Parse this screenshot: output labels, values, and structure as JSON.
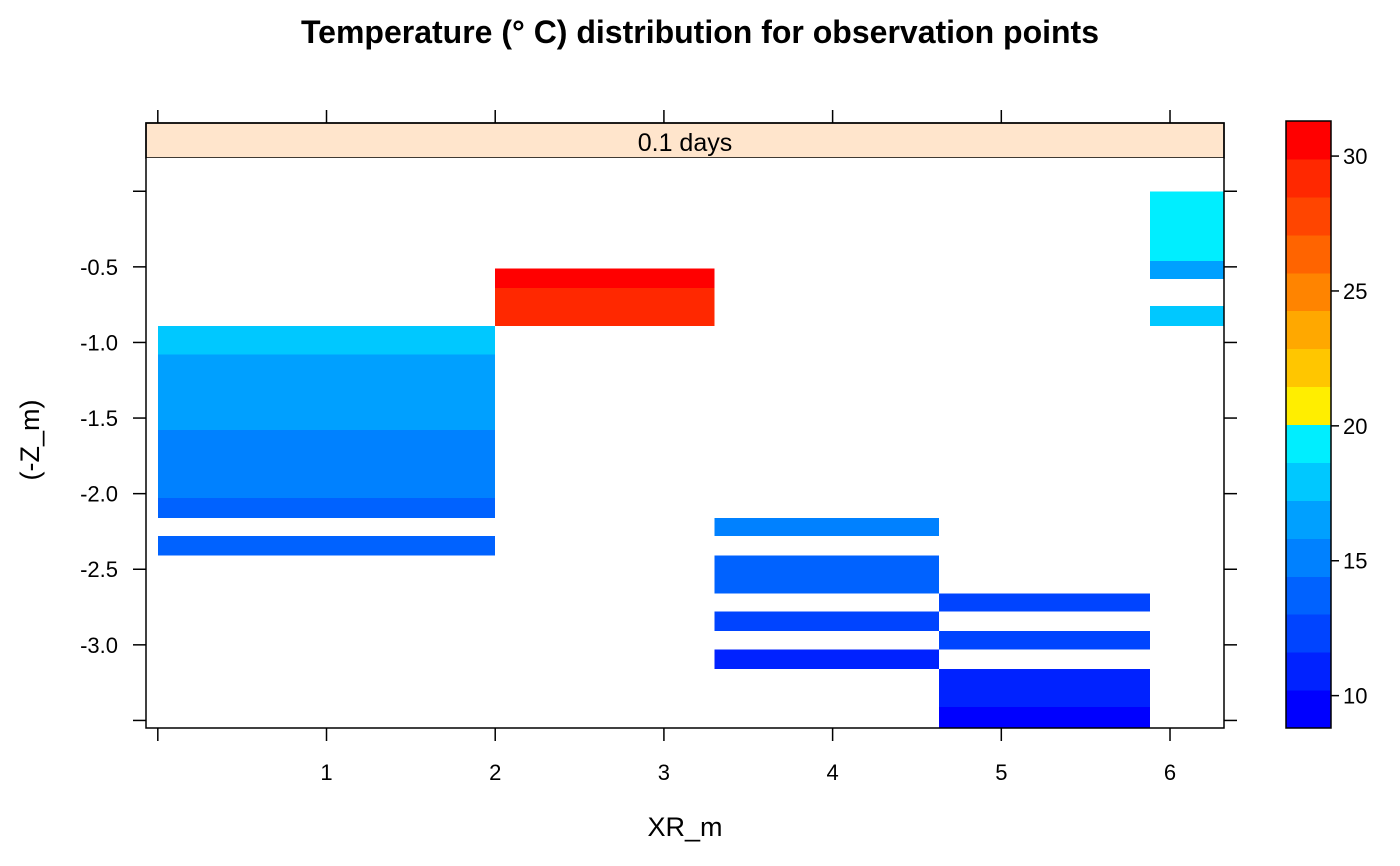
{
  "chart_data": {
    "type": "heatmap",
    "title": "Temperature (° C) distribution for observation points",
    "panel_label": "0.1 days",
    "xlabel": "XR_m",
    "ylabel": "(-Z_m)",
    "xlim": [
      -0.07,
      6.32
    ],
    "ylim": [
      -3.55,
      0.22
    ],
    "x_ticks": [
      1,
      2,
      3,
      4,
      5,
      6
    ],
    "x_tick_labels": [
      "1",
      "2",
      "3",
      "4",
      "5",
      "6"
    ],
    "y_ticks": [
      -0.5,
      -1.0,
      -1.5,
      -2.0,
      -2.5,
      -3.0
    ],
    "y_tick_labels": [
      "-0.5",
      "-1.0",
      "-1.5",
      "-2.0",
      "-2.5",
      "-3.0"
    ],
    "colorbar": {
      "range": [
        8.8,
        31.3
      ],
      "ticks": [
        10,
        15,
        20,
        25,
        30
      ],
      "tick_labels": [
        "10",
        "15",
        "20",
        "25",
        "30"
      ],
      "colors": [
        "#0000ff",
        "#0022ff",
        "#0044ff",
        "#0062ff",
        "#0081ff",
        "#00a0ff",
        "#00c8ff",
        "#00eeff",
        "#ffee00",
        "#ffc600",
        "#ffa800",
        "#ff8400",
        "#ff6400",
        "#ff4500",
        "#ff2800",
        "#ff0000"
      ]
    },
    "cells": [
      {
        "x0": 0,
        "x1": 2,
        "y0": -1.08,
        "y1": -0.89,
        "value": 17.5
      },
      {
        "x0": 0,
        "x1": 2,
        "y0": -1.58,
        "y1": -1.08,
        "value": 16.2
      },
      {
        "x0": 0,
        "x1": 2,
        "y0": -2.03,
        "y1": -1.58,
        "value": 15.0
      },
      {
        "x0": 0,
        "x1": 2,
        "y0": -2.16,
        "y1": -2.03,
        "value": 13.8
      },
      {
        "x0": 0,
        "x1": 2,
        "y0": -2.41,
        "y1": -2.28,
        "value": 13.8
      },
      {
        "x0": 2,
        "x1": 3.3,
        "y0": -0.64,
        "y1": -0.51,
        "value": 30.5
      },
      {
        "x0": 2,
        "x1": 3.3,
        "y0": -0.89,
        "y1": -0.64,
        "value": 29.0
      },
      {
        "x0": 3.3,
        "x1": 4.63,
        "y0": -2.28,
        "y1": -2.16,
        "value": 15.0
      },
      {
        "x0": 3.3,
        "x1": 4.63,
        "y0": -2.66,
        "y1": -2.41,
        "value": 13.8
      },
      {
        "x0": 3.3,
        "x1": 4.63,
        "y0": -2.91,
        "y1": -2.78,
        "value": 12.5
      },
      {
        "x0": 3.3,
        "x1": 4.63,
        "y0": -3.16,
        "y1": -3.03,
        "value": 11.3
      },
      {
        "x0": 4.63,
        "x1": 5.88,
        "y0": -2.78,
        "y1": -2.66,
        "value": 12.5
      },
      {
        "x0": 4.63,
        "x1": 5.88,
        "y0": -3.03,
        "y1": -2.91,
        "value": 12.5
      },
      {
        "x0": 4.63,
        "x1": 5.88,
        "y0": -3.41,
        "y1": -3.16,
        "value": 11.3
      },
      {
        "x0": 4.63,
        "x1": 5.88,
        "y0": -3.55,
        "y1": -3.41,
        "value": 10.0
      },
      {
        "x0": 5.88,
        "x1": 6.32,
        "y0": -0.46,
        "y1": 0.0,
        "value": 19.4
      },
      {
        "x0": 5.88,
        "x1": 6.32,
        "y0": -0.58,
        "y1": -0.46,
        "value": 16.8
      },
      {
        "x0": 5.88,
        "x1": 6.32,
        "y0": -0.89,
        "y1": -0.76,
        "value": 17.5
      }
    ]
  }
}
